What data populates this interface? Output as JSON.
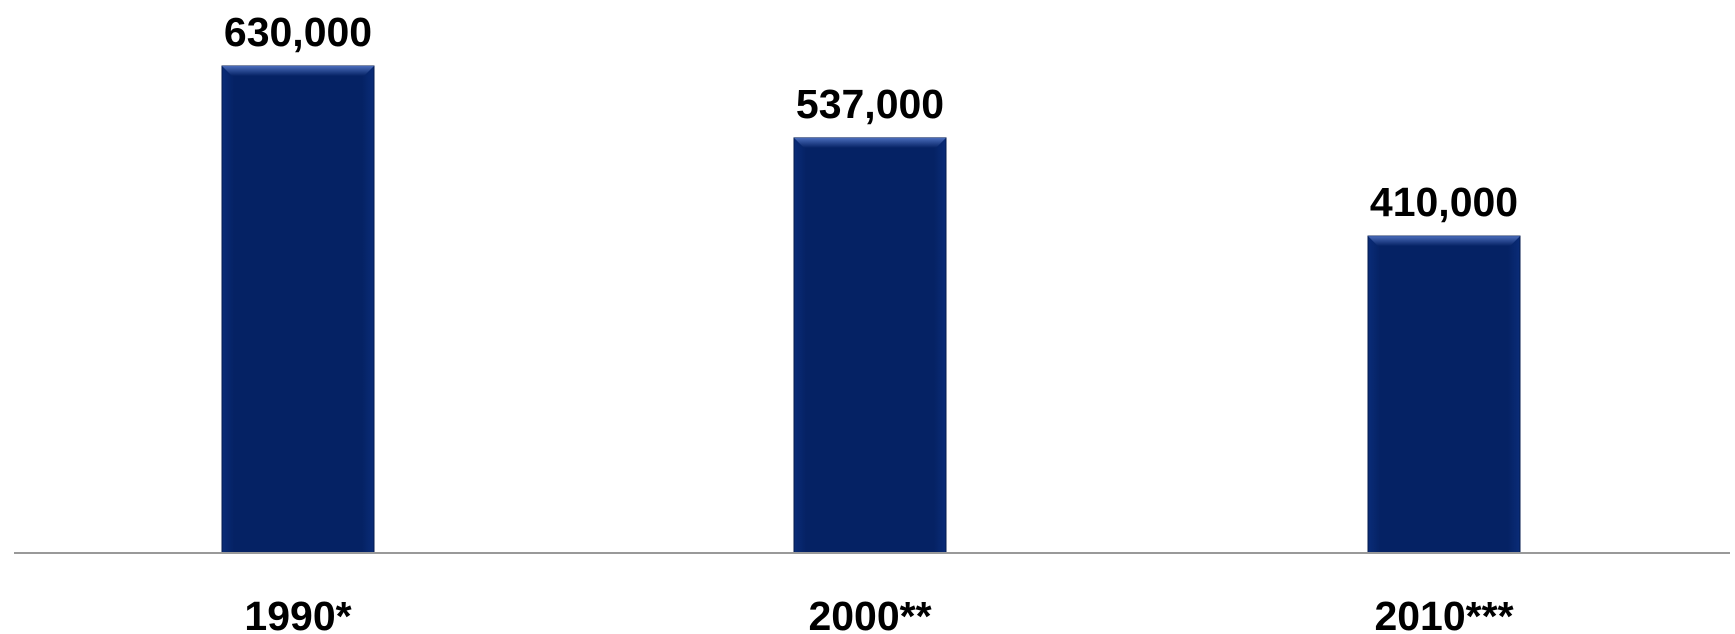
{
  "chart_data": {
    "type": "bar",
    "categories": [
      "1990*",
      "2000**",
      "2010***"
    ],
    "values": [
      630000,
      537000,
      410000
    ],
    "value_labels": [
      "630,000",
      "537,000",
      "410,000"
    ],
    "title": "",
    "xlabel": "",
    "ylabel": "",
    "ylim": [
      0,
      630000
    ],
    "grid": false,
    "legend": "none"
  },
  "colors": {
    "bar": "#052264",
    "bar_highlight": "#3a5aa8",
    "axis": "#999999",
    "text": "#000000"
  }
}
